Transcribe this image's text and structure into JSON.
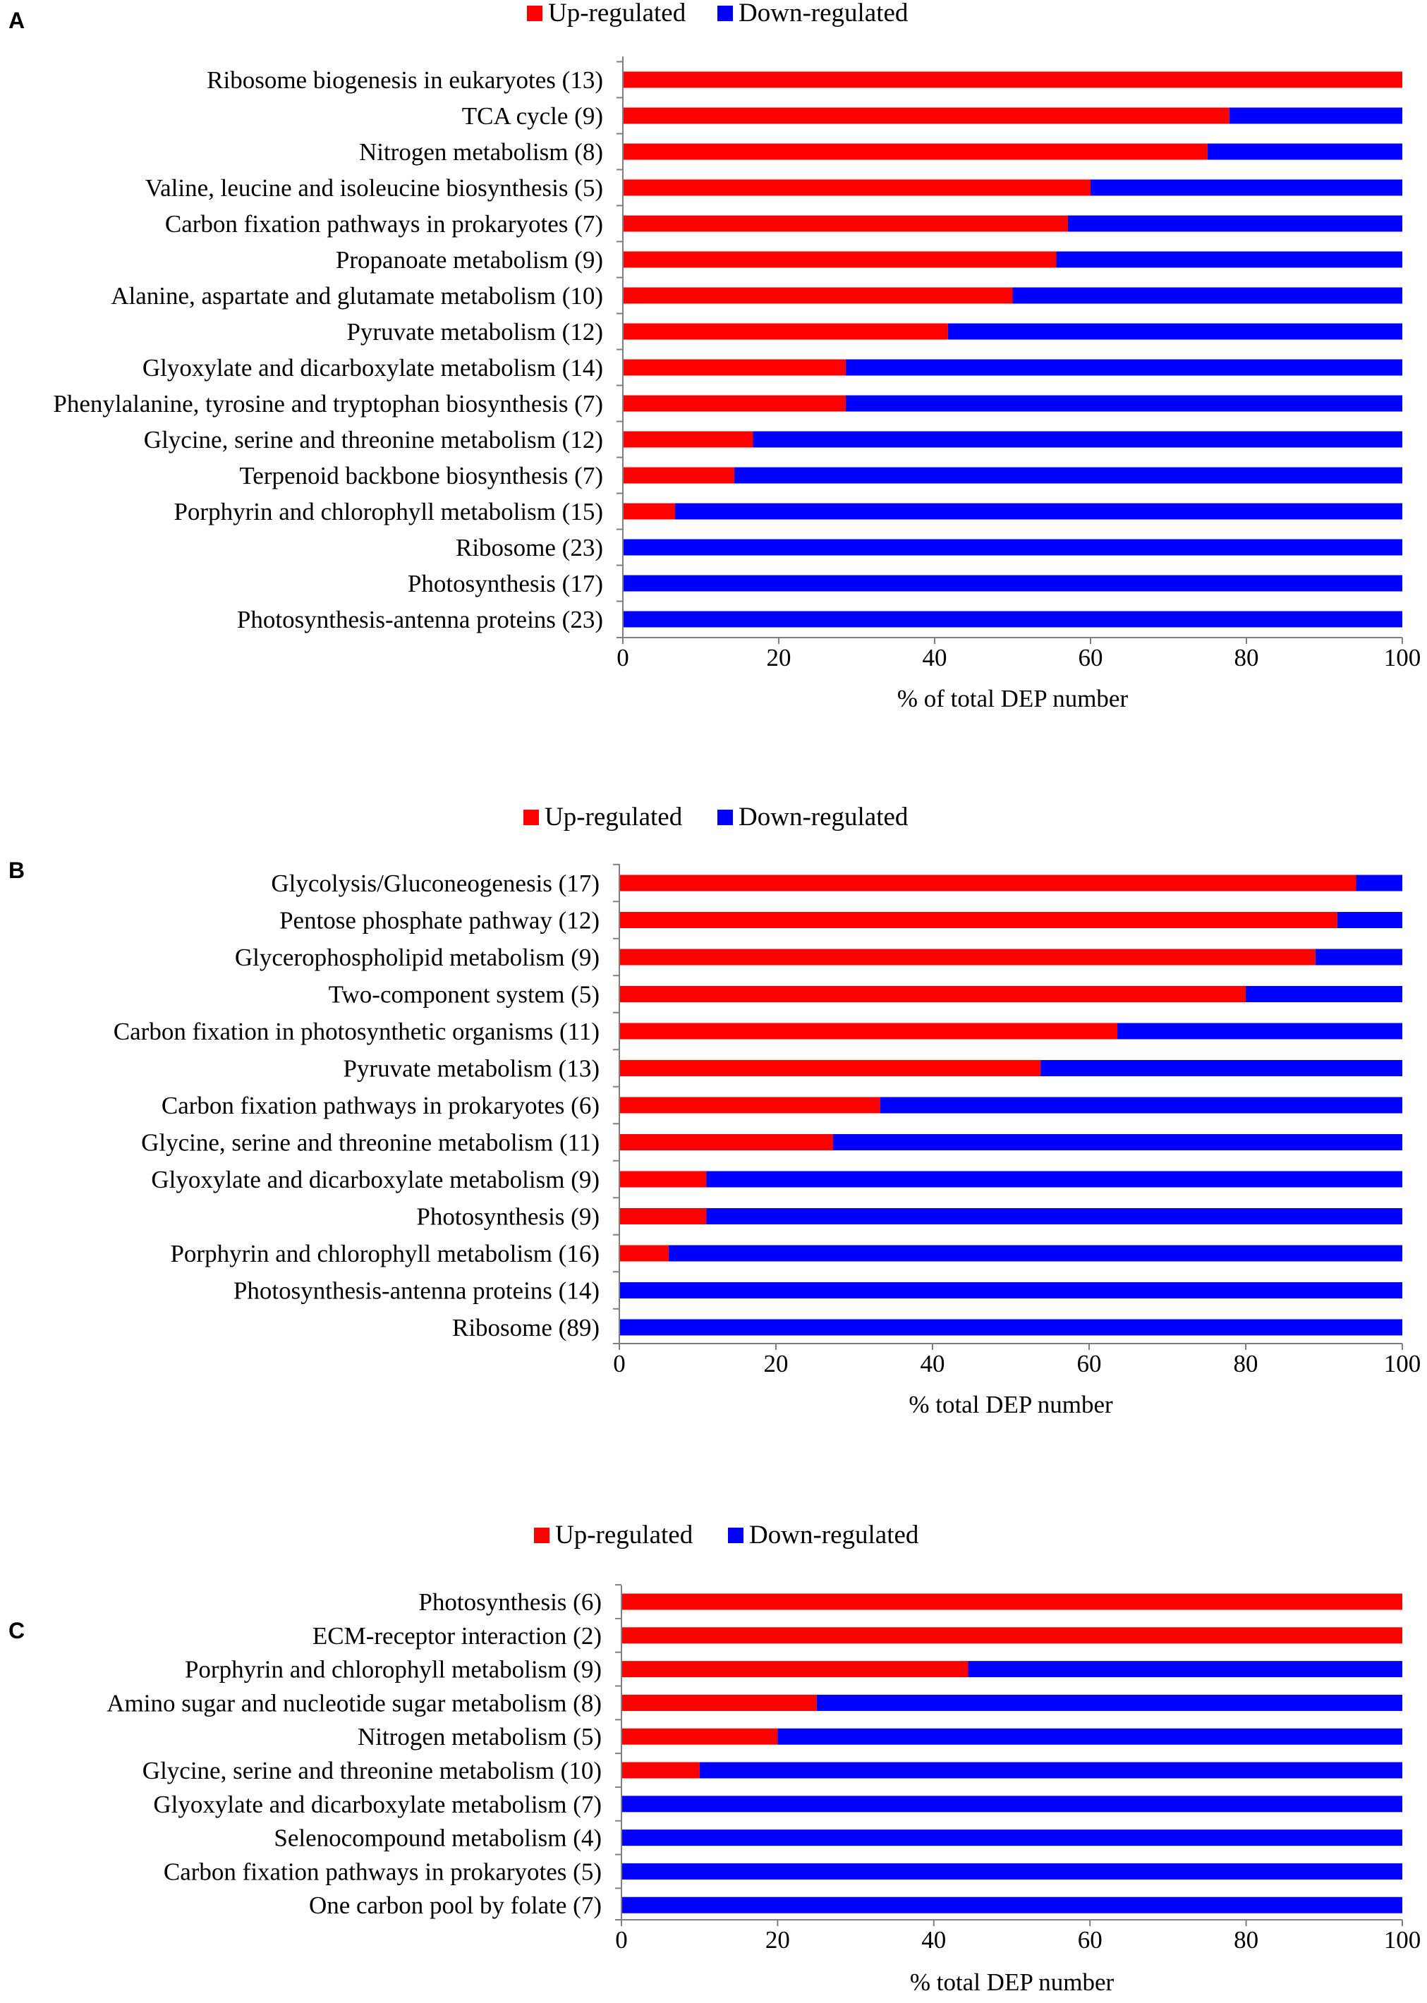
{
  "colors": {
    "up": "#ff0000",
    "down": "#0000ff",
    "axis": "#7f7f7f"
  },
  "chart_data": [
    {
      "type": "bar",
      "orientation": "horizontal",
      "stacked": "percent",
      "panel": "A",
      "legend": [
        "Up-regulated",
        "Down-regulated"
      ],
      "xlabel": "% of total DEP number",
      "xlim": [
        0,
        100
      ],
      "xticks": [
        "0",
        "20",
        "40",
        "60",
        "80",
        "100"
      ],
      "categories": [
        "Ribosome biogenesis in eukaryotes (13)",
        "TCA cycle (9)",
        "Nitrogen metabolism (8)",
        "Valine, leucine and isoleucine biosynthesis (5)",
        "Carbon fixation pathways in prokaryotes (7)",
        "Propanoate metabolism (9)",
        "Alanine, aspartate and glutamate metabolism (10)",
        "Pyruvate metabolism (12)",
        "Glyoxylate and dicarboxylate metabolism (14)",
        "Phenylalanine, tyrosine and tryptophan biosynthesis (7)",
        "Glycine, serine and threonine metabolism (12)",
        "Terpenoid backbone biosynthesis (7)",
        "Porphyrin and chlorophyll metabolism (15)",
        "Ribosome (23)",
        "Photosynthesis (17)",
        "Photosynthesis-antenna proteins (23)"
      ],
      "series": [
        {
          "name": "Up-regulated",
          "values": [
            100,
            77.8,
            75,
            60,
            57.1,
            55.6,
            50,
            41.7,
            28.6,
            28.6,
            16.7,
            14.3,
            6.7,
            0,
            0,
            0
          ]
        },
        {
          "name": "Down-regulated",
          "values": [
            0,
            22.2,
            25,
            40,
            42.9,
            44.4,
            50,
            58.3,
            71.4,
            71.4,
            83.3,
            85.7,
            93.3,
            100,
            100,
            100
          ]
        }
      ]
    },
    {
      "type": "bar",
      "orientation": "horizontal",
      "stacked": "percent",
      "panel": "B",
      "legend": [
        "Up-regulated",
        "Down-regulated"
      ],
      "xlabel": "% total DEP number",
      "xlim": [
        0,
        100
      ],
      "xticks": [
        "0",
        "20",
        "40",
        "60",
        "80",
        "100"
      ],
      "categories": [
        "Glycolysis/Gluconeogenesis (17)",
        "Pentose phosphate pathway (12)",
        "Glycerophospholipid metabolism (9)",
        "Two-component system (5)",
        "Carbon fixation in photosynthetic organisms (11)",
        "Pyruvate metabolism (13)",
        "Carbon fixation pathways in prokaryotes (6)",
        "Glycine, serine and threonine metabolism (11)",
        "Glyoxylate and dicarboxylate metabolism (9)",
        "Photosynthesis (9)",
        "Porphyrin and chlorophyll metabolism (16)",
        "Photosynthesis-antenna proteins (14)",
        "Ribosome (89)"
      ],
      "series": [
        {
          "name": "Up-regulated",
          "values": [
            94.1,
            91.7,
            88.9,
            80,
            63.6,
            53.8,
            33.3,
            27.3,
            11.1,
            11.1,
            6.3,
            0,
            0
          ]
        },
        {
          "name": "Down-regulated",
          "values": [
            5.9,
            8.3,
            11.1,
            20,
            36.4,
            46.2,
            66.7,
            72.7,
            88.9,
            88.9,
            93.7,
            100,
            100
          ]
        }
      ]
    },
    {
      "type": "bar",
      "orientation": "horizontal",
      "stacked": "percent",
      "panel": "C",
      "legend": [
        "Up-regulated",
        "Down-regulated"
      ],
      "xlabel": "% total DEP number",
      "xlim": [
        0,
        100
      ],
      "xticks": [
        "0",
        "20",
        "40",
        "60",
        "80",
        "100"
      ],
      "categories": [
        "Photosynthesis (6)",
        "ECM-receptor interaction (2)",
        "Porphyrin and chlorophyll metabolism (9)",
        "Amino sugar and nucleotide sugar metabolism (8)",
        "Nitrogen metabolism (5)",
        "Glycine, serine and threonine metabolism (10)",
        "Glyoxylate and dicarboxylate metabolism (7)",
        "Selenocompound metabolism (4)",
        "Carbon fixation pathways in prokaryotes (5)",
        "One carbon pool by folate (7)"
      ],
      "series": [
        {
          "name": "Up-regulated",
          "values": [
            100,
            100,
            44.4,
            25,
            20,
            10,
            0,
            0,
            0,
            0
          ]
        },
        {
          "name": "Down-regulated",
          "values": [
            0,
            0,
            55.6,
            75,
            80,
            90,
            100,
            100,
            100,
            100
          ]
        }
      ]
    }
  ]
}
